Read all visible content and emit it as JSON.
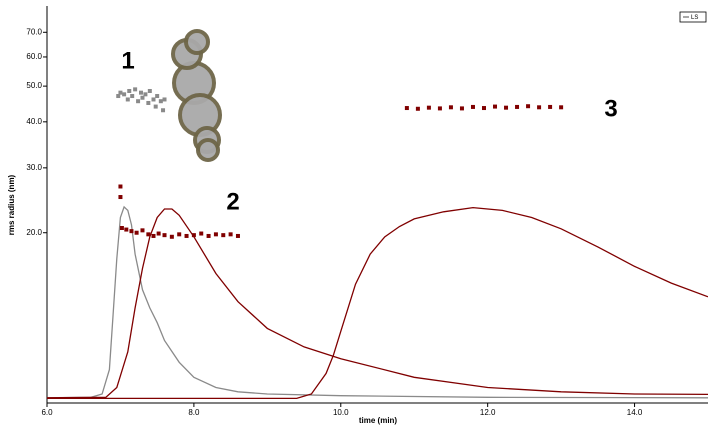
{
  "chart_data": {
    "type": "line",
    "x_label": "time (min)",
    "y_label": "rms radius (nm)",
    "xlim": [
      6,
      15
    ],
    "ylim": [
      6.9,
      82.5
    ],
    "log_y": true,
    "xticks": [
      {
        "value": 6,
        "label": "6.0"
      },
      {
        "value": 8,
        "label": "8.0"
      },
      {
        "value": 10,
        "label": "10.0"
      },
      {
        "value": 12,
        "label": "12.0"
      },
      {
        "value": 14,
        "label": "14.0"
      }
    ],
    "yticks": [
      {
        "value": 20,
        "label": "20.0"
      },
      {
        "value": 30,
        "label": "30.0"
      },
      {
        "value": 40,
        "label": "40.0"
      },
      {
        "value": 50,
        "label": "50.0"
      },
      {
        "value": 60,
        "label": "60.0"
      },
      {
        "value": 70,
        "label": "70.0"
      }
    ],
    "annotations": [
      "1",
      "2",
      "3"
    ],
    "series": [
      {
        "name": "LS",
        "type": "line",
        "color": "#8a8a8a",
        "x": [
          6.0,
          6.6,
          6.75,
          6.85,
          6.9,
          6.95,
          7.0,
          7.05,
          7.1,
          7.15,
          7.2,
          7.3,
          7.4,
          7.5,
          7.6,
          7.8,
          8.0,
          8.3,
          8.6,
          9.0,
          10.0,
          12.0,
          15.0
        ],
        "values": [
          7.13,
          7.15,
          7.3,
          8.5,
          12,
          17,
          22,
          23.5,
          23,
          21,
          17.5,
          14,
          12.5,
          11.4,
          10.2,
          8.9,
          8.1,
          7.6,
          7.4,
          7.3,
          7.22,
          7.15,
          7.13
        ]
      },
      {
        "type": "line",
        "color": "#800000",
        "x": [
          6.0,
          6.8,
          6.95,
          7.1,
          7.2,
          7.3,
          7.4,
          7.5,
          7.6,
          7.7,
          7.8,
          8.0,
          8.3,
          8.6,
          9.0,
          9.5,
          10.0,
          11.0,
          12.0,
          13.0,
          14.0,
          15.0
        ],
        "values": [
          7.13,
          7.15,
          7.6,
          9.5,
          12.5,
          16,
          19.5,
          22,
          23.2,
          23.2,
          22.3,
          19.5,
          15.5,
          13,
          11,
          9.8,
          9.1,
          8.1,
          7.6,
          7.4,
          7.3,
          7.28
        ]
      },
      {
        "type": "line",
        "color": "#800000",
        "x": [
          6.0,
          9.4,
          9.6,
          9.8,
          9.9,
          10.0,
          10.1,
          10.2,
          10.4,
          10.6,
          10.8,
          11.0,
          11.4,
          11.8,
          12.2,
          12.6,
          13.0,
          13.5,
          14.0,
          14.5,
          15.0
        ],
        "values": [
          7.1,
          7.1,
          7.3,
          8.3,
          9.3,
          10.8,
          12.5,
          14.5,
          17.5,
          19.5,
          20.8,
          21.8,
          22.8,
          23.4,
          23,
          22,
          20.5,
          18.3,
          16.2,
          14.6,
          13.4
        ]
      },
      {
        "type": "scatter",
        "color": "#8a8a8a",
        "x": [
          6.97,
          7.0,
          7.05,
          7.1,
          7.12,
          7.16,
          7.2,
          7.24,
          7.28,
          7.3,
          7.34,
          7.38,
          7.4,
          7.45,
          7.48,
          7.5,
          7.55,
          7.58,
          7.6
        ],
        "values": [
          47,
          48,
          47.5,
          46,
          48.5,
          47,
          49,
          45.5,
          48,
          46.5,
          47.5,
          45,
          48.5,
          46,
          44,
          47,
          45.5,
          43,
          46
        ]
      },
      {
        "type": "scatter",
        "color": "#800000",
        "x": [
          7.0,
          7.0,
          7.02,
          7.08,
          7.15,
          7.22,
          7.3,
          7.38,
          7.45,
          7.52,
          7.6,
          7.7,
          7.8,
          7.9,
          8.0,
          8.1,
          8.2,
          8.3,
          8.4,
          8.5,
          8.6
        ],
        "values": [
          26.7,
          25,
          20.6,
          20.4,
          20.2,
          20.0,
          20.3,
          19.8,
          19.6,
          19.9,
          19.7,
          19.5,
          19.8,
          19.6,
          19.7,
          19.9,
          19.6,
          19.8,
          19.7,
          19.8,
          19.6
        ]
      },
      {
        "type": "scatter",
        "color": "#800000",
        "x": [
          10.9,
          11.05,
          11.2,
          11.35,
          11.5,
          11.65,
          11.8,
          11.95,
          12.1,
          12.25,
          12.4,
          12.55,
          12.7,
          12.85,
          13.0
        ],
        "values": [
          43.6,
          43.4,
          43.7,
          43.5,
          43.8,
          43.5,
          43.9,
          43.6,
          44.0,
          43.7,
          43.9,
          44.1,
          43.8,
          43.9,
          43.8
        ]
      }
    ]
  }
}
